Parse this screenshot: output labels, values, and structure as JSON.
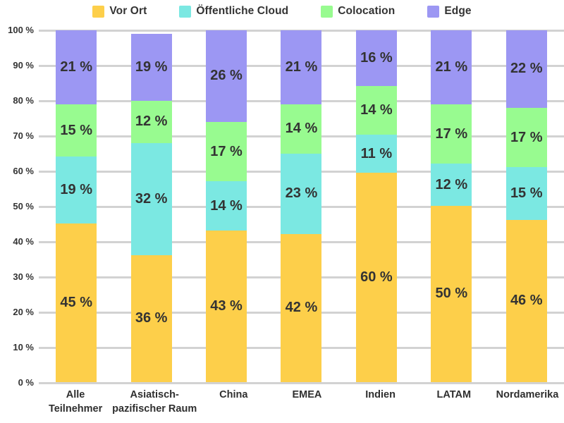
{
  "chart_data": {
    "type": "bar",
    "stacked": true,
    "title": "",
    "value_suffix": " %",
    "categories": [
      "Alle Teilnehmer",
      "Asiatisch-pazifischer Raum",
      "China",
      "EMEA",
      "Indien",
      "LATAM",
      "Nordamerika"
    ],
    "category_labels_display": [
      "Alle\nTeilnehmer",
      "Asiatisch-\npazifischer Raum",
      "China",
      "EMEA",
      "Indien",
      "LATAM",
      "Nordamerika"
    ],
    "series": [
      {
        "name": "Vor Ort",
        "color": "#FDCF4A",
        "values": [
          45,
          36,
          43,
          42,
          60,
          50,
          46
        ]
      },
      {
        "name": "Öffentliche Cloud",
        "color": "#7BE8E2",
        "values": [
          19,
          32,
          14,
          23,
          11,
          12,
          15
        ]
      },
      {
        "name": "Colocation",
        "color": "#98FB90",
        "values": [
          15,
          12,
          17,
          14,
          14,
          17,
          17
        ]
      },
      {
        "name": "Edge",
        "color": "#9C97F3",
        "values": [
          21,
          19,
          26,
          21,
          16,
          21,
          22
        ]
      }
    ],
    "y_axis": {
      "min": 0,
      "max": 100,
      "step": 10,
      "tick_labels": [
        "0 %",
        "10 %",
        "20 %",
        "30 %",
        "40 %",
        "50 %",
        "60 %",
        "70 %",
        "80 %",
        "90 %",
        "100 %"
      ]
    },
    "grid": true,
    "legend_position": "top"
  },
  "colors": {
    "gridline": "#D2D2D2",
    "text": "#333333",
    "background": "#FFFFFF"
  }
}
